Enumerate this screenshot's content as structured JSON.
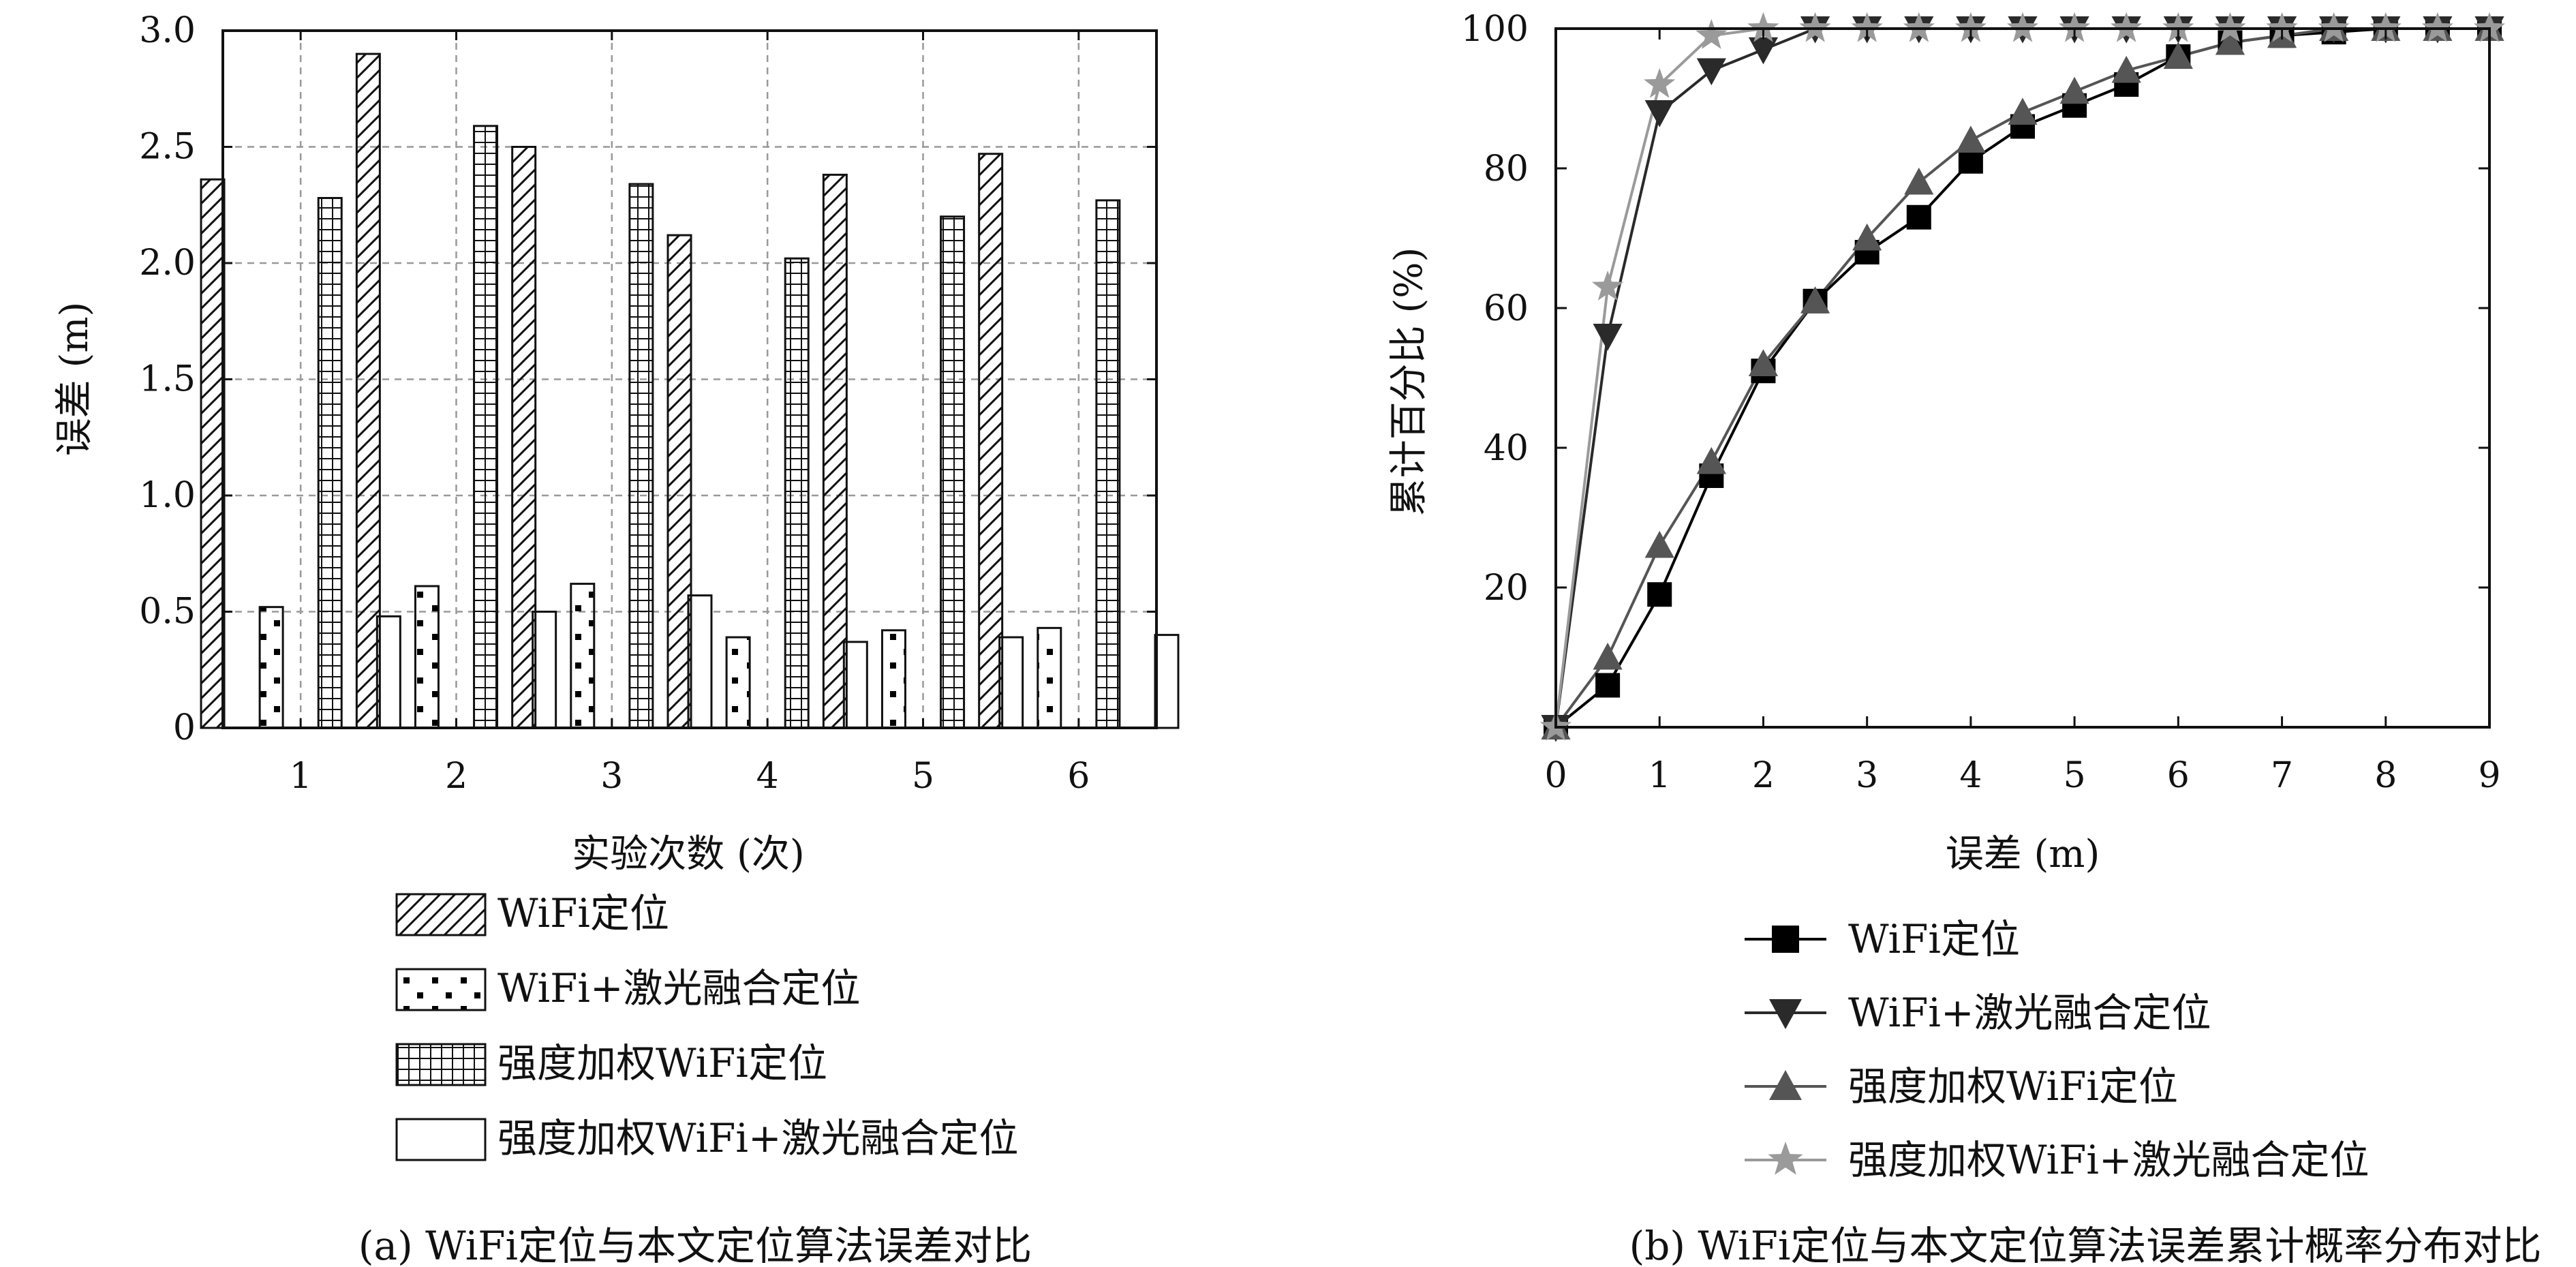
{
  "chart_data": [
    {
      "type": "bar",
      "caption": "(a) WiFi定位与本文定位算法误差对比",
      "xlabel": "实验次数 (次)",
      "ylabel": "误差 (m)",
      "categories": [
        "1",
        "2",
        "3",
        "4",
        "5",
        "6"
      ],
      "ylim": [
        0,
        3.0
      ],
      "yticks": [
        "0",
        "0.5",
        "1.0",
        "1.5",
        "2.0",
        "2.5",
        "3.0"
      ],
      "grid": true,
      "legend_position": "below",
      "series": [
        {
          "name": "WiFi定位",
          "pattern": "diagonal-hatch",
          "values": [
            2.36,
            2.9,
            2.5,
            2.12,
            2.38,
            2.47
          ]
        },
        {
          "name": "WiFi+激光融合定位",
          "pattern": "dots",
          "values": [
            0.52,
            0.61,
            0.62,
            0.39,
            0.42,
            0.43
          ]
        },
        {
          "name": "强度加权WiFi定位",
          "pattern": "grid-hatch",
          "values": [
            2.28,
            2.59,
            2.34,
            2.02,
            2.2,
            2.27
          ]
        },
        {
          "name": "强度加权WiFi+激光融合定位",
          "pattern": "empty",
          "values": [
            0.48,
            0.5,
            0.57,
            0.37,
            0.39,
            0.4
          ]
        }
      ]
    },
    {
      "type": "line",
      "caption": "(b) WiFi定位与本文定位算法误差累计概率分布对比",
      "xlabel": "误差 (m)",
      "ylabel": "累计百分比 (%)",
      "xlim": [
        0,
        9
      ],
      "ylim": [
        0,
        100
      ],
      "xticks": [
        "0",
        "1",
        "2",
        "3",
        "4",
        "5",
        "6",
        "7",
        "8",
        "9"
      ],
      "yticks": [
        "20",
        "40",
        "60",
        "80",
        "100"
      ],
      "legend_position": "below",
      "x": [
        0,
        0.5,
        1,
        1.5,
        2,
        2.5,
        3,
        3.5,
        4,
        4.5,
        5,
        5.5,
        6,
        6.5,
        7,
        7.5,
        8,
        8.5,
        9
      ],
      "series": [
        {
          "name": "WiFi定位",
          "marker": "square",
          "color": "#000000",
          "values": [
            0,
            6,
            19,
            36,
            51,
            61,
            68,
            73,
            81,
            86,
            89,
            92,
            96,
            98,
            99,
            99.5,
            100,
            100,
            100
          ]
        },
        {
          "name": "WiFi+激光融合定位",
          "marker": "triangle-down",
          "color": "#2a2a2a",
          "values": [
            0,
            56,
            88,
            94,
            97,
            100,
            100,
            100,
            100,
            100,
            100,
            100,
            100,
            100,
            100,
            100,
            100,
            100,
            100
          ]
        },
        {
          "name": "强度加权WiFi定位",
          "marker": "triangle-up",
          "color": "#555555",
          "values": [
            0,
            10,
            26,
            38,
            52,
            61,
            70,
            78,
            84,
            88,
            91,
            94,
            96,
            98,
            99,
            100,
            100,
            100,
            100
          ]
        },
        {
          "name": "强度加权WiFi+激光融合定位",
          "marker": "star",
          "color": "#9a9a9a",
          "values": [
            0,
            63,
            92,
            99,
            100,
            100,
            100,
            100,
            100,
            100,
            100,
            100,
            100,
            100,
            100,
            100,
            100,
            100,
            100
          ]
        }
      ]
    }
  ]
}
